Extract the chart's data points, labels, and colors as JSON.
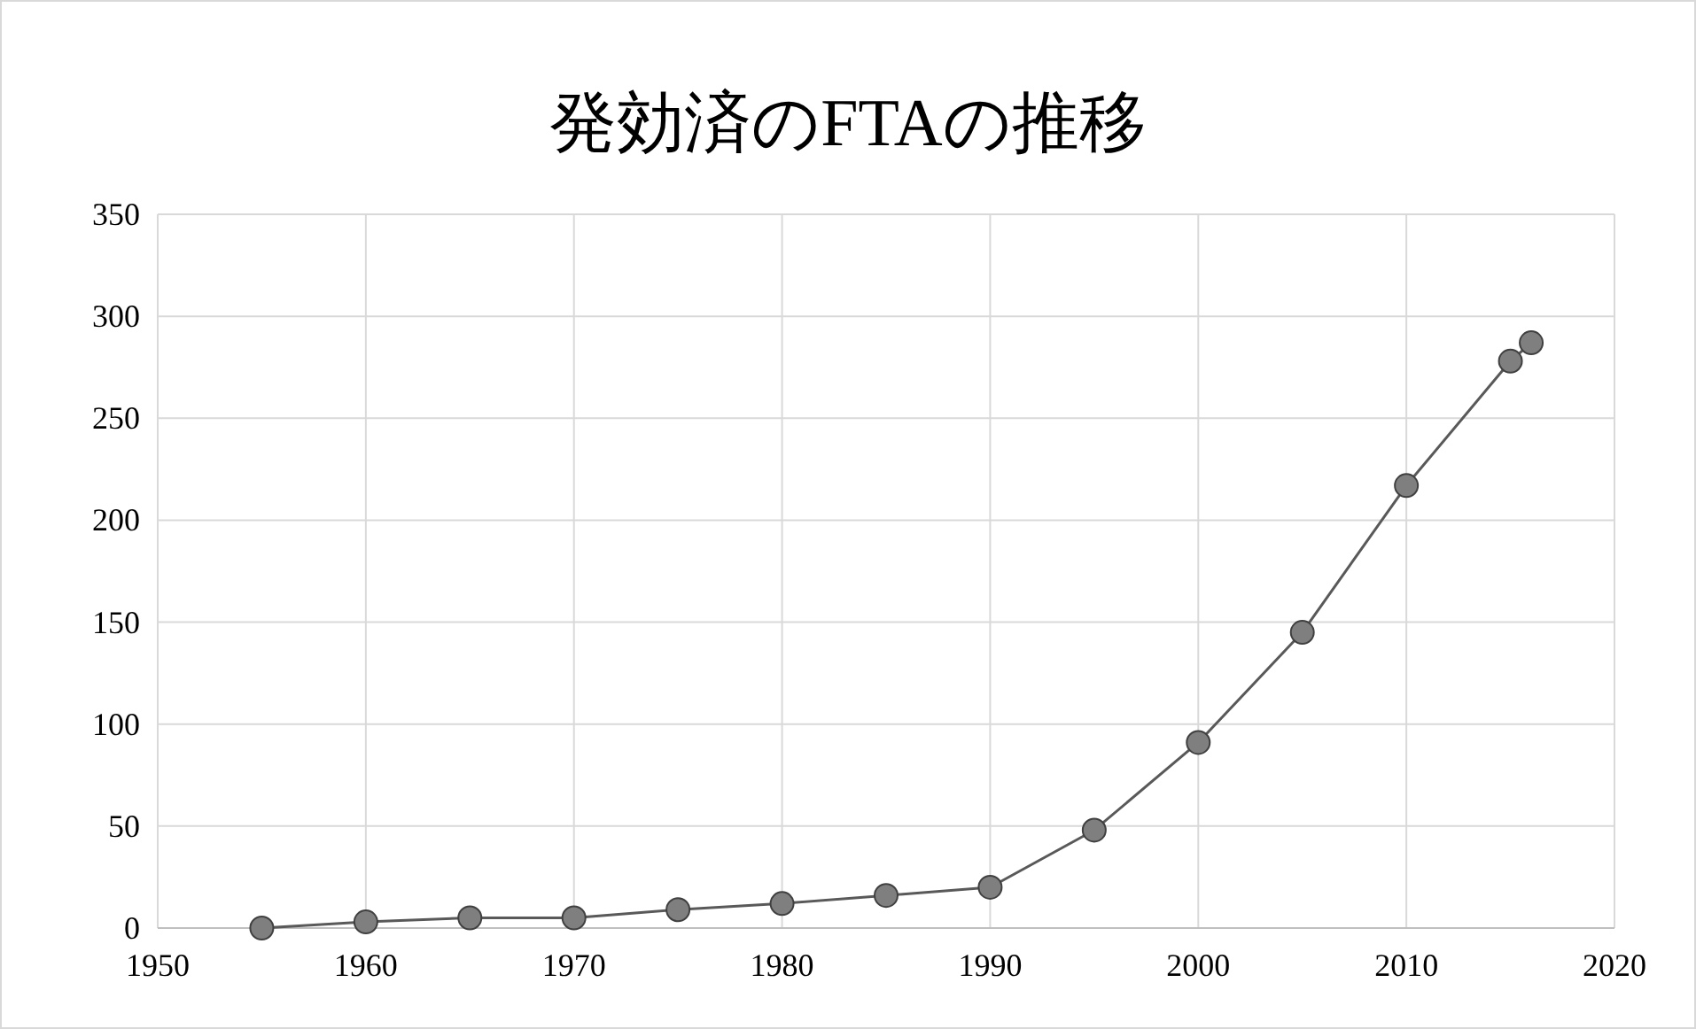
{
  "chart_data": {
    "type": "line",
    "title": "発効済のFTAの推移",
    "x": [
      1955,
      1960,
      1965,
      1970,
      1975,
      1980,
      1985,
      1990,
      1995,
      2000,
      2005,
      2010,
      2015,
      2016
    ],
    "series": [
      {
        "color": "#7f7f7f",
        "values": [
          0,
          3,
          5,
          5,
          9,
          12,
          16,
          20,
          48,
          91,
          145,
          217,
          278,
          287
        ]
      }
    ],
    "xlim": [
      1950,
      2020
    ],
    "xticks": [
      1950,
      1960,
      1970,
      1980,
      1990,
      2000,
      2010,
      2020
    ],
    "ylim": [
      0,
      350
    ],
    "yticks": [
      0,
      50,
      100,
      150,
      200,
      250,
      300,
      350
    ],
    "grid": true,
    "marker": "circle",
    "line_style": "solid"
  }
}
